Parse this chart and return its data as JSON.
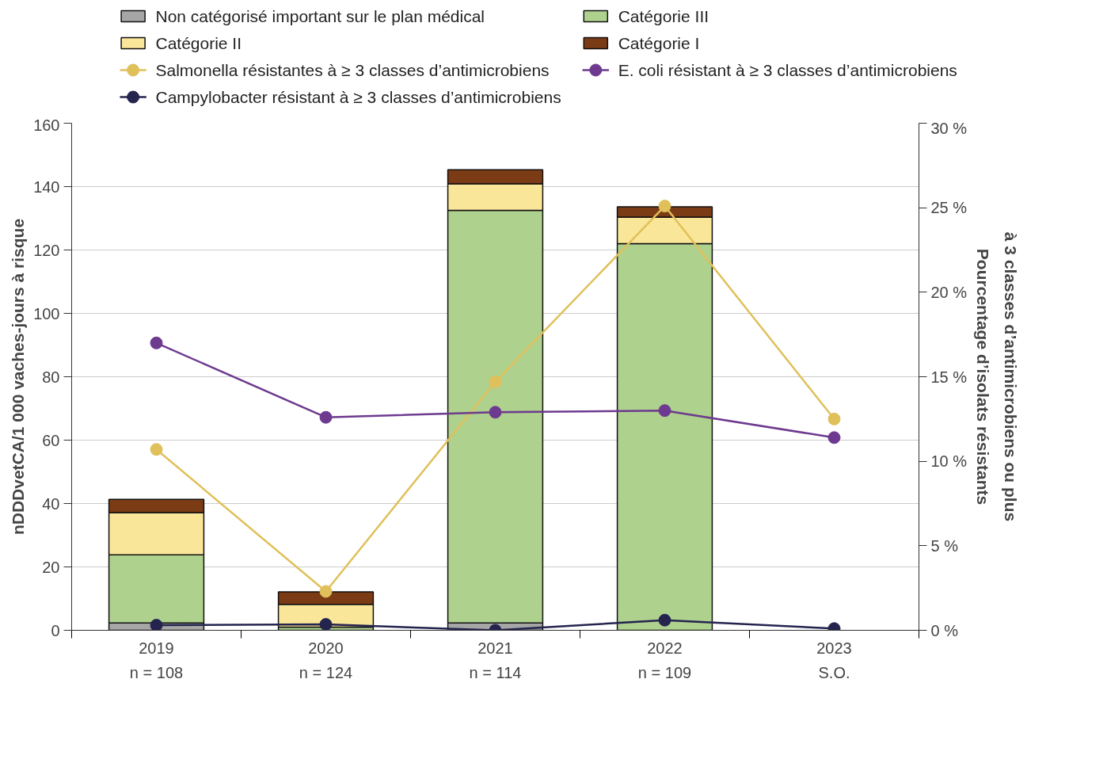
{
  "chart_data": {
    "type": "bar",
    "stacked": true,
    "categories": [
      "2019\nn = 108",
      "2020\nn = 124",
      "2021\nn = 114",
      "2022\nn = 109",
      "2023\nS.O."
    ],
    "ylabel": "nDDDvetCA/1 000 vaches-jours à risque",
    "y2label": "Pourcentage d’isolats résistants\nà 3 classes d’antimicrobiens ou plus",
    "ylim": [
      0,
      160
    ],
    "yticks": [
      0,
      20,
      40,
      60,
      80,
      100,
      120,
      140,
      160
    ],
    "y2lim": [
      0,
      30
    ],
    "y2ticks": [
      {
        "value": 0,
        "label": "0 %"
      },
      {
        "value": 5,
        "label": "5 %"
      },
      {
        "value": 10,
        "label": "10 %"
      },
      {
        "value": 15,
        "label": "15 %"
      },
      {
        "value": 20,
        "label": "20 %"
      },
      {
        "value": 25,
        "label": "25 %"
      },
      {
        "value": 30,
        "label": "30 %"
      }
    ],
    "grid": "y",
    "legend": "top",
    "marker": "circle",
    "line_style": "solid",
    "series": [
      {
        "name": "Non catégorisé important sur le plan médical",
        "color": "#a6a6a6",
        "values": [
          2.3,
          0,
          2.3,
          0,
          null
        ]
      },
      {
        "name": "Catégorie III",
        "color": "#aed18e",
        "values": [
          21.5,
          1.0,
          130.2,
          122.0,
          null
        ]
      },
      {
        "name": "Catégorie II",
        "color": "#fae699",
        "values": [
          13.3,
          7.2,
          8.4,
          8.4,
          null
        ]
      },
      {
        "name": "Catégorie I",
        "color": "#7b3b14",
        "values": [
          4.2,
          3.9,
          4.4,
          3.2,
          null
        ]
      },
      {
        "name": "Salmonella résistantes à ≥ 3 classes d’antimicrobiens",
        "type": "line",
        "axis": "y2",
        "color": "#e0c05a",
        "values": [
          10.7,
          2.3,
          14.7,
          25.1,
          12.5
        ]
      },
      {
        "name": "E. coli résistant à ≥ 3 classes d’antimicrobiens",
        "type": "line",
        "axis": "y2",
        "color": "#6d3a8f",
        "values": [
          17.0,
          12.6,
          12.9,
          13.0,
          11.4
        ]
      },
      {
        "name": "Campylobacter résistant à ≥ 3 classes d’antimicrobiens",
        "type": "line",
        "axis": "y2",
        "color": "#24244f",
        "values": [
          0.3,
          0.35,
          0.0,
          0.6,
          0.1
        ]
      }
    ]
  }
}
